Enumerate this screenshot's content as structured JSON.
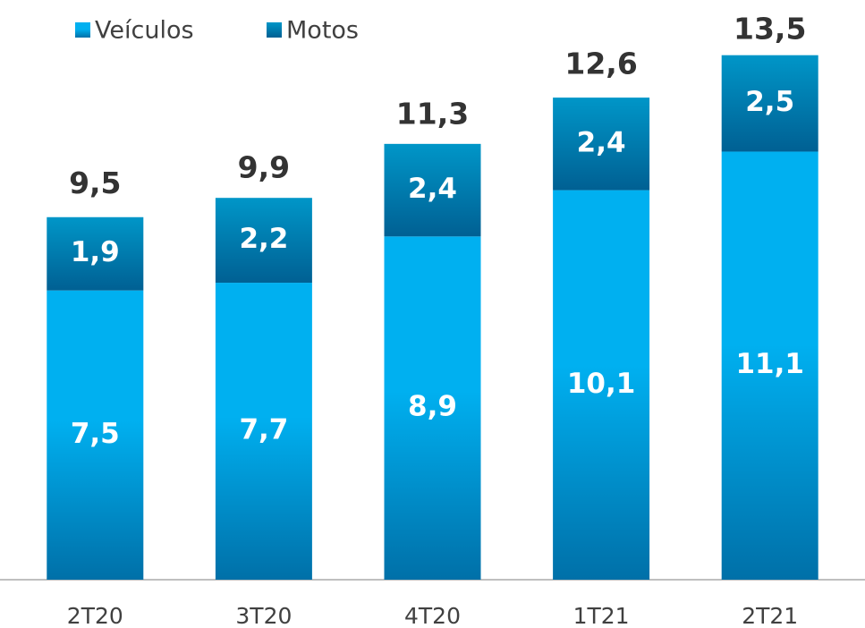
{
  "chart_data": {
    "type": "stacked_bar",
    "categories": [
      "2T20",
      "3T20",
      "4T20",
      "1T21",
      "2T21"
    ],
    "series": [
      {
        "name": "Veículos",
        "color": "#00b0f0",
        "values": [
          7.5,
          7.7,
          8.9,
          10.1,
          11.1
        ],
        "value_labels": [
          "7,5",
          "7,7",
          "8,9",
          "10,1",
          "11,1"
        ]
      },
      {
        "name": "Motos",
        "color": "#0096c8",
        "values": [
          1.9,
          2.2,
          2.4,
          2.4,
          2.5
        ],
        "value_labels": [
          "1,9",
          "2,2",
          "2,4",
          "2,4",
          "2,5"
        ]
      }
    ],
    "totals": [
      9.5,
      9.9,
      11.3,
      12.6,
      13.5
    ],
    "total_labels": [
      "9,5",
      "9,9",
      "11,3",
      "12,6",
      "13,5"
    ],
    "legend": "top-left"
  }
}
